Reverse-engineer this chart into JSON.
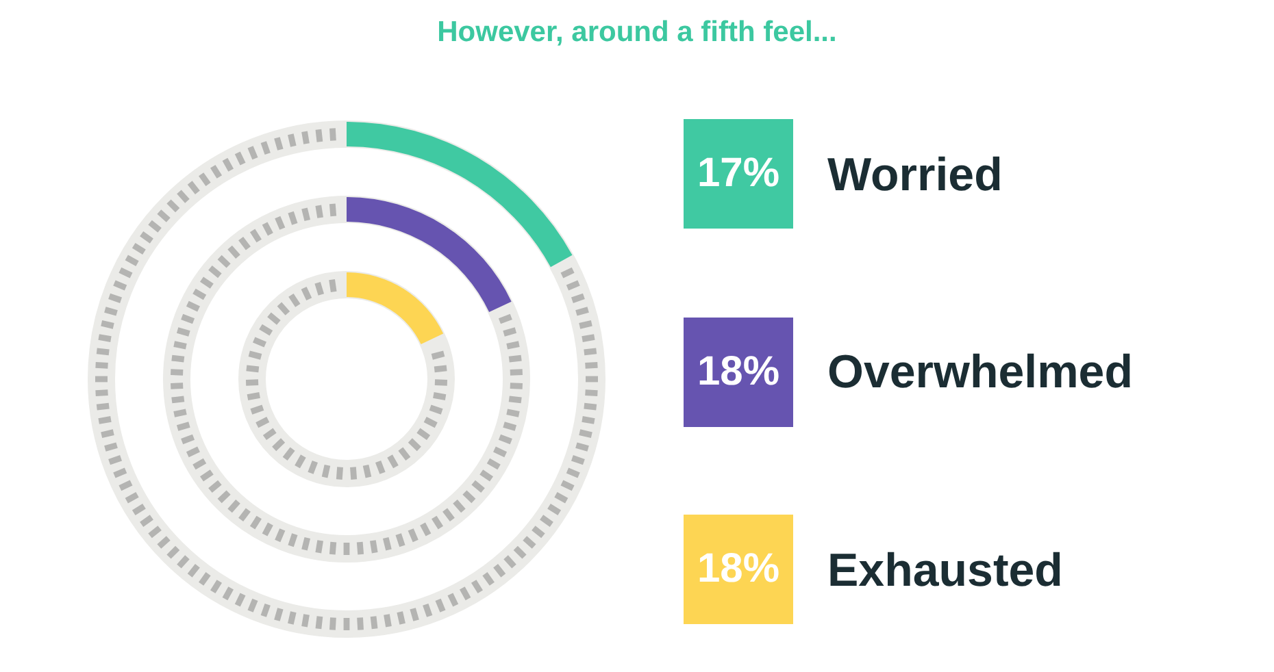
{
  "chart_data": {
    "type": "other",
    "title": "However, around a fifth feel...",
    "categories": [
      "Worried",
      "Overwhelmed",
      "Exhausted"
    ],
    "values": [
      17,
      18,
      18
    ],
    "value_labels": [
      "17%",
      "18%",
      "18%"
    ],
    "colors": [
      "#40c9a2",
      "#6654b0",
      "#fdd553"
    ]
  }
}
